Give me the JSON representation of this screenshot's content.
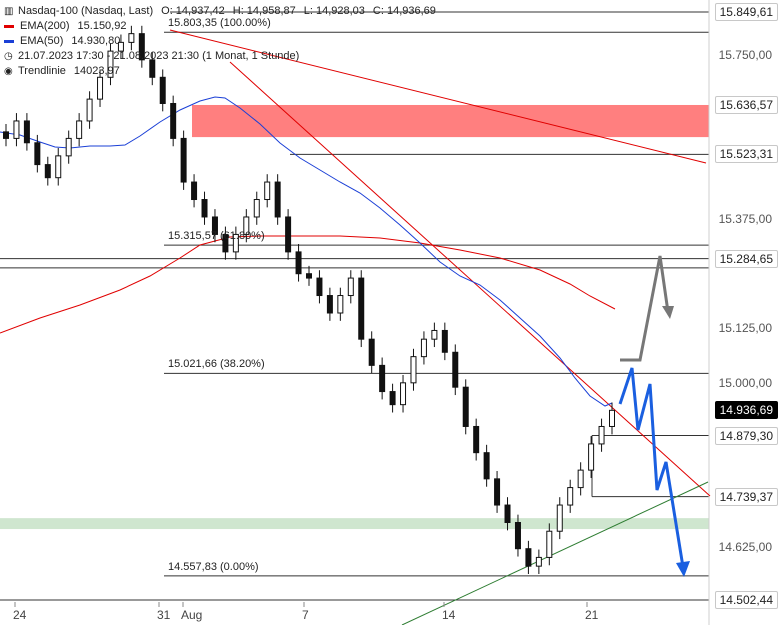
{
  "legend": {
    "instrument": "Nasdaq-100 (Nasdaq, Last)",
    "open": "O: 14,937,42",
    "high": "H: 14,958,87",
    "low": "L: 14,928,03",
    "close": "C: 14,936,69",
    "ema200": {
      "name": "EMA(200)",
      "value": "15.150,92",
      "color": "#e00000"
    },
    "ema50": {
      "name": "EMA(50)",
      "value": "14.930,80",
      "color": "#1a3fd6"
    },
    "range": "21.07.2023 17:30 - 21.08.2023 21:30 (1 Monat, 1 Stunde)",
    "trend_label": "Trendlinie",
    "trend_value": "14023,97"
  },
  "price_labels": [
    {
      "text": "15.849,61",
      "price": 15849.61,
      "highlight": false
    },
    {
      "text": "15.636,57",
      "price": 15636.57,
      "highlight": false
    },
    {
      "text": "15.523,31",
      "price": 15523.31,
      "highlight": false
    },
    {
      "text": "15.284,65",
      "price": 15284.65,
      "highlight": false
    },
    {
      "text": "14.936,69",
      "price": 14936.69,
      "highlight": true
    },
    {
      "text": "14.879,30",
      "price": 14879.3,
      "highlight": false
    },
    {
      "text": "14.739,37",
      "price": 14739.37,
      "highlight": false
    },
    {
      "text": "14.502,44",
      "price": 14502.44,
      "highlight": false
    }
  ],
  "axis_ticks": [
    {
      "text": "15.750,00",
      "price": 15750
    },
    {
      "text": "15.375,00",
      "price": 15375
    },
    {
      "text": "15.125,00",
      "price": 15125
    },
    {
      "text": "15.000,00",
      "price": 15000
    },
    {
      "text": "14.625,00",
      "price": 14625
    }
  ],
  "fib_labels": [
    {
      "text": "15.803,35 (100.00%)",
      "price": 15803.35
    },
    {
      "text": "15.315,57 (61.80%)",
      "price": 15315.57
    },
    {
      "text": "15.021,66 (38.20%)",
      "price": 15021.66
    },
    {
      "text": "14.557,83 (0.00%)",
      "price": 14557.83
    }
  ],
  "x_labels": [
    "24",
    "31",
    "Aug",
    "7",
    "14",
    "21"
  ],
  "chart_data": {
    "type": "candlestick",
    "title": "Nasdaq-100 (Nasdaq, Last)",
    "timeframe": "1 Stunde",
    "period": "21.07.2023 17:30 - 21.08.2023 21:30",
    "ylim": [
      14480,
      15875
    ],
    "last_ohlc": {
      "open": 14937.42,
      "high": 14958.87,
      "low": 14928.03,
      "close": 14936.69
    },
    "approx_hourly_closes": [
      15560,
      15600,
      15550,
      15500,
      15470,
      15520,
      15560,
      15600,
      15650,
      15700,
      15760,
      15780,
      15800,
      15740,
      15700,
      15640,
      15560,
      15460,
      15420,
      15380,
      15340,
      15300,
      15340,
      15380,
      15420,
      15460,
      15380,
      15300,
      15250,
      15240,
      15200,
      15160,
      15200,
      15240,
      15100,
      15040,
      14980,
      14950,
      15000,
      15060,
      15100,
      15120,
      15070,
      14990,
      14900,
      14840,
      14780,
      14720,
      14680,
      14620,
      14580,
      14600,
      14660,
      14720,
      14760,
      14800,
      14860,
      14900,
      14937
    ],
    "series": [
      {
        "name": "EMA(200)",
        "last": 15150.92,
        "color": "#e00000"
      },
      {
        "name": "EMA(50)",
        "last": 14930.8,
        "color": "#1a3fd6"
      },
      {
        "name": "Trendlinie",
        "last": 14023.97,
        "color": "#3f8f3f"
      }
    ],
    "horizontal_levels": [
      15849.61,
      15803.35,
      15523.31,
      15315.57,
      15284.65,
      15263.42,
      15021.66,
      14879.3,
      14739.37,
      14557.83,
      14502.44
    ],
    "zones": [
      {
        "from": 15563,
        "to": 15636.57,
        "color": "#ff7f7f"
      },
      {
        "from": 14665,
        "to": 14690,
        "color": "#cfe6cf"
      }
    ],
    "scenarios": [
      {
        "color": "#777777",
        "direction": "up"
      },
      {
        "color": "#1a5fe0",
        "direction": "down"
      }
    ],
    "grid": false,
    "legend_position": "top-left"
  }
}
